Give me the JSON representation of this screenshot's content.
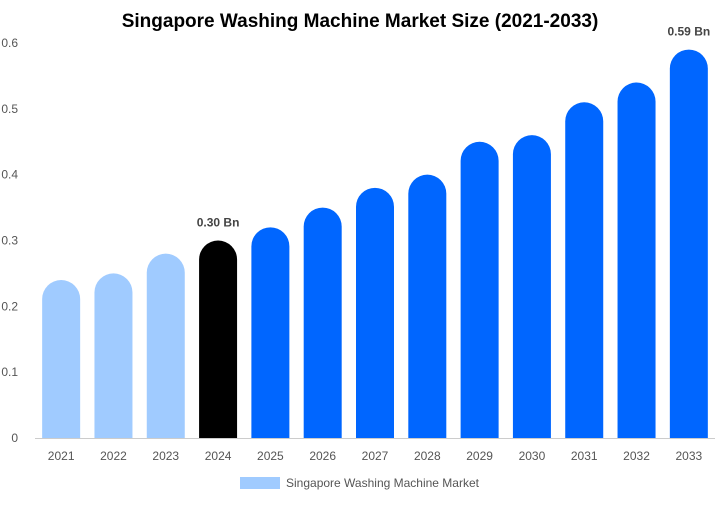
{
  "chart_data": {
    "type": "bar",
    "title": "Singapore Washing Machine Market Size (2021-2033)",
    "categories": [
      "2021",
      "2022",
      "2023",
      "2024",
      "2025",
      "2026",
      "2027",
      "2028",
      "2029",
      "2030",
      "2031",
      "2032",
      "2033"
    ],
    "series": [
      {
        "name": "Singapore Washing Machine Market",
        "values": [
          0.24,
          0.25,
          0.28,
          0.3,
          0.32,
          0.35,
          0.38,
          0.4,
          0.45,
          0.46,
          0.51,
          0.54,
          0.59
        ]
      }
    ],
    "data_labels": [
      {
        "category": "2024",
        "text": "0.30 Bn"
      },
      {
        "category": "2033",
        "text": "0.59 Bn"
      }
    ],
    "ylim": [
      0,
      0.6
    ],
    "yticks": [
      "0",
      "0.1",
      "0.2",
      "0.3",
      "0.4",
      "0.5",
      "0.6"
    ],
    "xlabel": "",
    "ylabel": "",
    "grid": false,
    "legend": "bottom",
    "colors": {
      "historical": "#a0cbff",
      "current": "#000000",
      "forecast": "#0066ff",
      "legend_swatch": "#a0cbff"
    },
    "bar_color_groups": [
      "historical",
      "historical",
      "historical",
      "current",
      "forecast",
      "forecast",
      "forecast",
      "forecast",
      "forecast",
      "forecast",
      "forecast",
      "forecast",
      "forecast"
    ]
  }
}
